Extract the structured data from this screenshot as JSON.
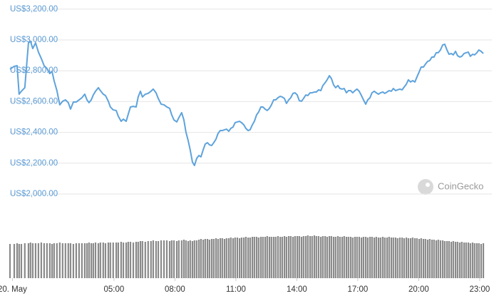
{
  "chart_data": {
    "type": "line",
    "watermark": "CoinGecko",
    "x": [
      -0.12,
      0.09,
      0.23,
      0.33,
      0.44,
      0.61,
      0.79,
      0.89,
      1.0,
      1.14,
      1.28,
      1.42,
      1.56,
      1.7,
      1.84,
      1.95,
      2.05,
      2.19,
      2.33,
      2.47,
      2.61,
      2.75,
      2.86,
      3.0,
      3.14,
      3.28,
      3.42,
      3.56,
      3.67,
      3.77,
      3.88,
      3.98,
      4.09,
      4.23,
      4.33,
      4.47,
      4.58,
      4.72,
      4.82,
      4.96,
      5.11,
      5.21,
      5.35,
      5.46,
      5.6,
      5.7,
      5.81,
      5.95,
      6.09,
      6.19,
      6.3,
      6.4,
      6.54,
      6.68,
      6.82,
      6.93,
      7.07,
      7.18,
      7.32,
      7.46,
      7.6,
      7.74,
      7.84,
      7.95,
      8.09,
      8.19,
      8.33,
      8.44,
      8.54,
      8.65,
      8.75,
      8.86,
      8.96,
      9.07,
      9.18,
      9.28,
      9.39,
      9.49,
      9.6,
      9.7,
      9.81,
      9.91,
      10.02,
      10.12,
      10.23,
      10.33,
      10.44,
      10.54,
      10.65,
      10.75,
      10.86,
      10.96,
      11.07,
      11.18,
      11.28,
      11.39,
      11.49,
      11.6,
      11.7,
      11.81,
      11.91,
      12.02,
      12.12,
      12.23,
      12.33,
      12.44,
      12.54,
      12.65,
      12.75,
      12.86,
      12.96,
      13.07,
      13.18,
      13.28,
      13.39,
      13.49,
      13.6,
      13.7,
      13.81,
      13.91,
      14.02,
      14.12,
      14.23,
      14.33,
      14.44,
      14.54,
      14.65,
      14.75,
      14.86,
      14.96,
      15.07,
      15.18,
      15.28,
      15.39,
      15.49,
      15.6,
      15.7,
      15.81,
      15.91,
      16.02,
      16.12,
      16.23,
      16.33,
      16.44,
      16.54,
      16.65,
      16.75,
      16.86,
      16.96,
      17.07,
      17.18,
      17.28,
      17.39,
      17.49,
      17.6,
      17.7,
      17.81,
      17.91,
      18.02,
      18.12,
      18.23,
      18.33,
      18.44,
      18.54,
      18.65,
      18.75,
      18.86,
      18.96,
      19.07,
      19.18,
      19.28,
      19.39,
      19.49,
      19.6,
      19.7,
      19.81,
      19.91,
      20.02,
      20.12,
      20.23,
      20.33,
      20.44,
      20.54,
      20.65,
      20.75,
      20.86,
      20.96,
      21.07,
      21.18,
      21.28,
      21.39,
      21.49,
      21.6,
      21.7,
      21.81,
      21.91,
      22.02,
      22.12,
      22.23,
      22.33,
      22.44,
      22.54,
      22.65,
      22.75,
      22.86,
      22.96,
      23.07,
      23.18
    ],
    "values": [
      2810,
      2829,
      2833,
      2648,
      2667,
      2690,
      2981,
      2991,
      2944,
      2981,
      2921,
      2880,
      2833,
      2815,
      2782,
      2796,
      2736,
      2671,
      2579,
      2602,
      2611,
      2593,
      2551,
      2597,
      2597,
      2611,
      2625,
      2648,
      2611,
      2593,
      2611,
      2643,
      2667,
      2690,
      2671,
      2648,
      2639,
      2602,
      2565,
      2546,
      2542,
      2505,
      2472,
      2486,
      2472,
      2518,
      2565,
      2569,
      2565,
      2630,
      2667,
      2630,
      2648,
      2653,
      2667,
      2681,
      2657,
      2620,
      2583,
      2579,
      2565,
      2556,
      2514,
      2481,
      2468,
      2495,
      2528,
      2481,
      2403,
      2347,
      2287,
      2208,
      2185,
      2231,
      2250,
      2241,
      2287,
      2324,
      2333,
      2319,
      2315,
      2333,
      2356,
      2393,
      2412,
      2412,
      2417,
      2421,
      2407,
      2426,
      2435,
      2463,
      2468,
      2472,
      2463,
      2449,
      2426,
      2412,
      2417,
      2449,
      2472,
      2514,
      2532,
      2565,
      2565,
      2551,
      2542,
      2556,
      2579,
      2611,
      2611,
      2625,
      2634,
      2630,
      2620,
      2588,
      2611,
      2625,
      2653,
      2657,
      2643,
      2606,
      2602,
      2620,
      2643,
      2639,
      2657,
      2657,
      2662,
      2662,
      2676,
      2671,
      2704,
      2722,
      2741,
      2768,
      2750,
      2708,
      2690,
      2704,
      2685,
      2681,
      2685,
      2657,
      2671,
      2671,
      2657,
      2671,
      2681,
      2667,
      2639,
      2611,
      2583,
      2611,
      2625,
      2657,
      2667,
      2657,
      2648,
      2657,
      2662,
      2653,
      2662,
      2671,
      2667,
      2685,
      2671,
      2676,
      2681,
      2676,
      2694,
      2713,
      2741,
      2727,
      2736,
      2727,
      2759,
      2792,
      2824,
      2824,
      2843,
      2861,
      2866,
      2889,
      2889,
      2917,
      2917,
      2935,
      2968,
      2972,
      2935,
      2907,
      2912,
      2903,
      2926,
      2898,
      2889,
      2894,
      2912,
      2917,
      2921,
      2894,
      2907,
      2903,
      2917,
      2935,
      2926,
      2912
    ],
    "color": "#5ea3dc",
    "volume": [
      48,
      48,
      49,
      48,
      48,
      49,
      49,
      50,
      49,
      49,
      49,
      50,
      49,
      49,
      49,
      48,
      49,
      49,
      50,
      49,
      49,
      49,
      49,
      48,
      49,
      49,
      49,
      49,
      49,
      50,
      49,
      49,
      50,
      49,
      50,
      50,
      49,
      50,
      50,
      50,
      50,
      50,
      51,
      50,
      50,
      51,
      51,
      50,
      51,
      51,
      52,
      52,
      51,
      52,
      52,
      53,
      52,
      52,
      53,
      53,
      53,
      52,
      53,
      53,
      52,
      53,
      53,
      54,
      53,
      52,
      53,
      52,
      53,
      53,
      54,
      55,
      54,
      55,
      55,
      54,
      55,
      55,
      56,
      55,
      56,
      56,
      55,
      56,
      56,
      57,
      56,
      57,
      57,
      56,
      57,
      57,
      58,
      57,
      57,
      58,
      58,
      58,
      57,
      58,
      58,
      58,
      59,
      58,
      58,
      58,
      58,
      59,
      58,
      58,
      59,
      58,
      59,
      59,
      58,
      59,
      59,
      59,
      58,
      59,
      59,
      60,
      59,
      59,
      60,
      59,
      59,
      58,
      59,
      59,
      58,
      59,
      59,
      58,
      58,
      59,
      58,
      58,
      59,
      58,
      58,
      58,
      57,
      58,
      58,
      58,
      57,
      58,
      58,
      57,
      58,
      58,
      57,
      58,
      57,
      57,
      58,
      57,
      57,
      58,
      57,
      57,
      57,
      56,
      57,
      57,
      56,
      57,
      56,
      56,
      57,
      56,
      56,
      55,
      56,
      55,
      55,
      54,
      55,
      54,
      54,
      53,
      54,
      53,
      53,
      52,
      52,
      52,
      51,
      52,
      51,
      51,
      50,
      51,
      50,
      50,
      50,
      49,
      50,
      49,
      49,
      49,
      48,
      49
    ],
    "volume_color": "#8a8a8a",
    "xlim": [
      -0.12,
      23.6
    ],
    "xticks": [
      {
        "value": 0,
        "label": "20. May"
      },
      {
        "value": 5,
        "label": "05:00"
      },
      {
        "value": 8,
        "label": "08:00"
      },
      {
        "value": 11,
        "label": "11:00"
      },
      {
        "value": 14,
        "label": "14:00"
      },
      {
        "value": 17,
        "label": "17:00"
      },
      {
        "value": 20,
        "label": "20:00"
      },
      {
        "value": 23,
        "label": "23:00"
      }
    ],
    "ylim": [
      2000,
      3200
    ],
    "yticks": [
      {
        "value": 2000,
        "label": "US$2,000.00"
      },
      {
        "value": 2200,
        "label": "US$2,200.00"
      },
      {
        "value": 2400,
        "label": "US$2,400.00"
      },
      {
        "value": 2600,
        "label": "US$2,600.00"
      },
      {
        "value": 2800,
        "label": "US$2,800.00"
      },
      {
        "value": 3000,
        "label": "US$3,000.00"
      },
      {
        "value": 3200,
        "label": "US$3,200.00"
      }
    ],
    "y2lim": [
      0,
      90
    ],
    "grid": true
  }
}
